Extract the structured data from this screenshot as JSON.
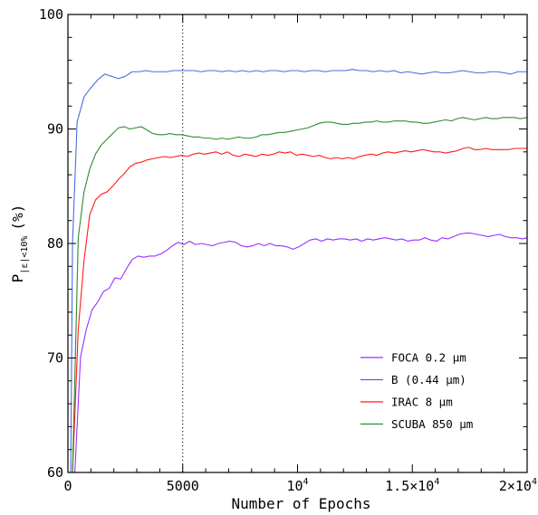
{
  "chart_data": {
    "type": "line",
    "xlabel": "Number of Epochs",
    "ylabel_main": "P",
    "ylabel_sub": "|ε|<10%",
    "ylabel_tail": "(%)",
    "xlim": [
      0,
      20000
    ],
    "ylim": [
      60,
      100
    ],
    "vline_x": 5000,
    "legend_position": "bottom-right",
    "x_ticks": [
      {
        "value": 0,
        "label": "0"
      },
      {
        "value": 5000,
        "label": "5000"
      },
      {
        "value": 10000,
        "label": "10",
        "sup": "4"
      },
      {
        "value": 15000,
        "label": "1.5×10",
        "sup": "4"
      },
      {
        "value": 20000,
        "label": "2×10",
        "sup": "4"
      }
    ],
    "y_ticks": [
      {
        "value": 60,
        "label": "60"
      },
      {
        "value": 70,
        "label": "70"
      },
      {
        "value": 80,
        "label": "80"
      },
      {
        "value": 90,
        "label": "90"
      },
      {
        "value": 100,
        "label": "100"
      }
    ],
    "series": [
      {
        "name": "FOCA 0.2 μm",
        "color": "#9b30ff",
        "x": [
          300,
          550,
          800,
          1050,
          1300,
          1550,
          1800,
          2050,
          2300,
          2550,
          2800,
          3050,
          3300,
          3550,
          3800,
          4050,
          4300,
          4550,
          4800,
          5050,
          5300,
          5550,
          5800,
          6050,
          6300,
          6550,
          6800,
          7050,
          7300,
          7550,
          7800,
          8050,
          8300,
          8550,
          8800,
          9050,
          9300,
          9550,
          9800,
          10050,
          10300,
          10550,
          10800,
          11050,
          11300,
          11550,
          11800,
          12050,
          12300,
          12550,
          12800,
          13050,
          13300,
          13550,
          13800,
          14050,
          14300,
          14550,
          14800,
          15050,
          15300,
          15550,
          15800,
          16050,
          16300,
          16550,
          16800,
          17050,
          17300,
          17550,
          17800,
          18050,
          18300,
          18550,
          18800,
          19050,
          19300,
          19550,
          19800,
          20000
        ],
        "y": [
          60.0,
          70.1,
          72.5,
          74.2,
          74.9,
          75.8,
          76.1,
          77.0,
          76.9,
          77.8,
          78.6,
          78.9,
          78.8,
          78.9,
          78.9,
          79.1,
          79.4,
          79.8,
          80.1,
          79.9,
          80.2,
          79.9,
          80.0,
          79.9,
          79.8,
          80.0,
          80.1,
          80.2,
          80.1,
          79.8,
          79.7,
          79.8,
          80.0,
          79.8,
          80.0,
          79.8,
          79.8,
          79.7,
          79.5,
          79.7,
          80.0,
          80.3,
          80.4,
          80.2,
          80.4,
          80.3,
          80.4,
          80.4,
          80.3,
          80.4,
          80.2,
          80.4,
          80.3,
          80.4,
          80.5,
          80.4,
          80.3,
          80.4,
          80.2,
          80.3,
          80.3,
          80.5,
          80.3,
          80.2,
          80.5,
          80.4,
          80.6,
          80.8,
          80.9,
          80.9,
          80.8,
          80.7,
          80.6,
          80.7,
          80.8,
          80.6,
          80.5,
          80.5,
          80.4,
          80.5
        ]
      },
      {
        "name": "B (0.44 μm)",
        "color": "#4a6de0",
        "x": [
          200,
          400,
          700,
          1000,
          1300,
          1600,
          1900,
          2200,
          2500,
          2800,
          3100,
          3400,
          3700,
          4000,
          4300,
          4600,
          4900,
          5200,
          5500,
          5800,
          6100,
          6400,
          6700,
          7000,
          7300,
          7600,
          7900,
          8200,
          8500,
          8800,
          9100,
          9400,
          9700,
          10000,
          10300,
          10600,
          10900,
          11200,
          11500,
          11800,
          12100,
          12400,
          12700,
          13000,
          13300,
          13600,
          13900,
          14200,
          14500,
          14800,
          15100,
          15400,
          15700,
          16000,
          16300,
          16600,
          16900,
          17200,
          17500,
          17800,
          18100,
          18400,
          18700,
          19000,
          19300,
          19600,
          19900,
          20000
        ],
        "y": [
          80.0,
          90.6,
          92.8,
          93.6,
          94.3,
          94.8,
          94.6,
          94.4,
          94.6,
          95.0,
          95.0,
          95.1,
          95.0,
          95.0,
          95.0,
          95.1,
          95.1,
          95.1,
          95.1,
          95.0,
          95.1,
          95.1,
          95.0,
          95.1,
          95.0,
          95.1,
          95.0,
          95.1,
          95.0,
          95.1,
          95.1,
          95.0,
          95.1,
          95.1,
          95.0,
          95.1,
          95.1,
          95.0,
          95.1,
          95.1,
          95.1,
          95.2,
          95.1,
          95.1,
          95.0,
          95.1,
          95.0,
          95.1,
          94.9,
          95.0,
          94.9,
          94.8,
          94.9,
          95.0,
          94.9,
          94.9,
          95.0,
          95.1,
          95.0,
          94.9,
          94.9,
          95.0,
          95.0,
          94.9,
          94.8,
          95.0,
          95.0,
          95.0
        ]
      },
      {
        "name": "IRAC 8 μm",
        "color": "#ff1a1a",
        "x": [
          200,
          450,
          700,
          950,
          1200,
          1450,
          1700,
          1950,
          2200,
          2450,
          2700,
          2950,
          3200,
          3450,
          3700,
          3950,
          4200,
          4450,
          4700,
          4950,
          5200,
          5450,
          5700,
          5950,
          6200,
          6450,
          6700,
          6950,
          7200,
          7450,
          7700,
          7950,
          8200,
          8450,
          8700,
          8950,
          9200,
          9450,
          9700,
          9950,
          10200,
          10450,
          10700,
          10950,
          11200,
          11450,
          11700,
          11950,
          12200,
          12450,
          12700,
          12950,
          13200,
          13450,
          13700,
          13950,
          14200,
          14450,
          14700,
          14950,
          15200,
          15450,
          15700,
          15950,
          16200,
          16450,
          16700,
          16950,
          17200,
          17450,
          17700,
          17950,
          18200,
          18450,
          18700,
          18950,
          19200,
          19450,
          19700,
          20000
        ],
        "y": [
          60.0,
          72.5,
          78.5,
          82.5,
          83.8,
          84.3,
          84.5,
          85.0,
          85.6,
          86.1,
          86.7,
          87.0,
          87.1,
          87.3,
          87.4,
          87.5,
          87.6,
          87.5,
          87.6,
          87.7,
          87.6,
          87.8,
          87.9,
          87.8,
          87.9,
          88.0,
          87.8,
          88.0,
          87.7,
          87.6,
          87.8,
          87.7,
          87.6,
          87.8,
          87.7,
          87.8,
          88.0,
          87.9,
          88.0,
          87.7,
          87.8,
          87.7,
          87.6,
          87.7,
          87.5,
          87.4,
          87.5,
          87.4,
          87.5,
          87.4,
          87.6,
          87.7,
          87.8,
          87.7,
          87.9,
          88.0,
          87.9,
          88.0,
          88.1,
          88.0,
          88.1,
          88.2,
          88.1,
          88.0,
          88.0,
          87.9,
          88.0,
          88.1,
          88.3,
          88.4,
          88.2,
          88.2,
          88.3,
          88.2,
          88.2,
          88.2,
          88.2,
          88.3,
          88.3,
          88.3
        ]
      },
      {
        "name": "SCUBA 850 μm",
        "color": "#2e8b2e",
        "x": [
          200,
          450,
          700,
          950,
          1200,
          1450,
          1700,
          1950,
          2200,
          2450,
          2700,
          2950,
          3200,
          3450,
          3700,
          3950,
          4200,
          4450,
          4700,
          4950,
          5200,
          5450,
          5700,
          5950,
          6200,
          6450,
          6700,
          6950,
          7200,
          7450,
          7700,
          7950,
          8200,
          8450,
          8700,
          8950,
          9200,
          9450,
          9700,
          9950,
          10200,
          10450,
          10700,
          10950,
          11200,
          11450,
          11700,
          11950,
          12200,
          12450,
          12700,
          12950,
          13200,
          13450,
          13700,
          13950,
          14200,
          14450,
          14700,
          14950,
          15200,
          15450,
          15700,
          15950,
          16200,
          16450,
          16700,
          16950,
          17200,
          17450,
          17700,
          17950,
          18200,
          18450,
          18700,
          18950,
          19200,
          19450,
          19700,
          20000
        ],
        "y": [
          60.0,
          80.5,
          84.5,
          86.5,
          87.8,
          88.6,
          89.1,
          89.6,
          90.1,
          90.2,
          90.0,
          90.1,
          90.2,
          89.9,
          89.6,
          89.5,
          89.5,
          89.6,
          89.5,
          89.5,
          89.4,
          89.3,
          89.3,
          89.2,
          89.2,
          89.1,
          89.2,
          89.1,
          89.2,
          89.3,
          89.2,
          89.2,
          89.3,
          89.5,
          89.5,
          89.6,
          89.7,
          89.7,
          89.8,
          89.9,
          90.0,
          90.1,
          90.3,
          90.5,
          90.6,
          90.6,
          90.5,
          90.4,
          90.4,
          90.5,
          90.5,
          90.6,
          90.6,
          90.7,
          90.6,
          90.6,
          90.7,
          90.7,
          90.7,
          90.6,
          90.6,
          90.5,
          90.5,
          90.6,
          90.7,
          90.8,
          90.7,
          90.9,
          91.0,
          90.9,
          90.8,
          90.9,
          91.0,
          90.9,
          90.9,
          91.0,
          91.0,
          91.0,
          90.9,
          91.0
        ]
      }
    ]
  }
}
